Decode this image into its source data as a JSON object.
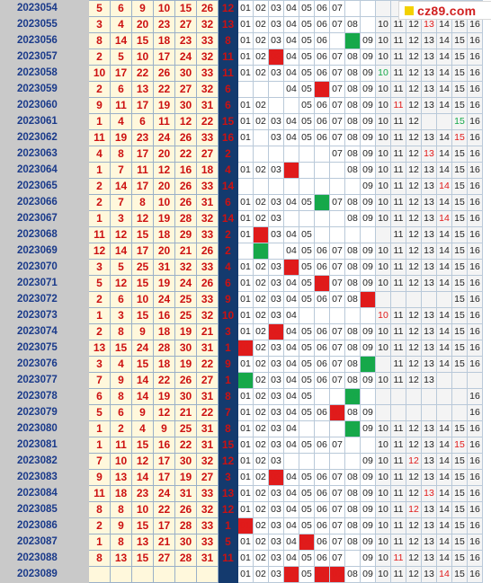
{
  "colors": {
    "period_bg": "#c9c9c9",
    "red_ball": "#cc1111",
    "blue_col_bg": "#143a6e",
    "hit_red": "#e01b1b",
    "hit_green": "#16a84a"
  },
  "logo": {
    "text": "cz89.com",
    "icon": "yellow-square-icon"
  },
  "nums": [
    "01",
    "02",
    "03",
    "04",
    "05",
    "06",
    "07",
    "08",
    "09",
    "10",
    "11",
    "12",
    "13",
    "14",
    "15",
    "16"
  ],
  "rows": [
    {
      "p": "2023054",
      "r": [
        "5",
        "6",
        "9",
        "10",
        "15",
        "26"
      ],
      "b": "12",
      "show": [
        1,
        1,
        1,
        1,
        1,
        1,
        1,
        0,
        0,
        0,
        0,
        0,
        0,
        0,
        0,
        0
      ],
      "hit": {}
    },
    {
      "p": "2023055",
      "r": [
        "3",
        "4",
        "20",
        "23",
        "27",
        "32"
      ],
      "b": "13",
      "show": [
        1,
        1,
        1,
        1,
        1,
        1,
        1,
        1,
        0,
        1,
        1,
        1,
        1,
        1,
        1,
        1
      ],
      "hit": {
        "13": "R"
      }
    },
    {
      "p": "2023056",
      "r": [
        "8",
        "14",
        "15",
        "18",
        "23",
        "33"
      ],
      "b": "8",
      "show": [
        1,
        1,
        1,
        1,
        1,
        1,
        0,
        1,
        1,
        1,
        1,
        1,
        1,
        1,
        1,
        1
      ],
      "hit": {
        "08": "G"
      }
    },
    {
      "p": "2023057",
      "r": [
        "2",
        "5",
        "10",
        "17",
        "24",
        "32"
      ],
      "b": "11",
      "show": [
        1,
        1,
        1,
        1,
        1,
        1,
        1,
        1,
        1,
        1,
        1,
        1,
        1,
        1,
        1,
        1
      ],
      "hit": {
        "03": "R"
      }
    },
    {
      "p": "2023058",
      "r": [
        "10",
        "17",
        "22",
        "26",
        "30",
        "33"
      ],
      "b": "11",
      "show": [
        1,
        1,
        1,
        1,
        1,
        1,
        1,
        1,
        1,
        1,
        1,
        1,
        1,
        1,
        1,
        1
      ],
      "hit": {
        "10": "G"
      }
    },
    {
      "p": "2023059",
      "r": [
        "2",
        "6",
        "13",
        "22",
        "27",
        "32"
      ],
      "b": "6",
      "show": [
        0,
        0,
        0,
        1,
        1,
        1,
        1,
        1,
        1,
        1,
        1,
        1,
        1,
        1,
        1,
        1
      ],
      "hit": {
        "06": "R"
      }
    },
    {
      "p": "2023060",
      "r": [
        "9",
        "11",
        "17",
        "19",
        "30",
        "31"
      ],
      "b": "6",
      "show": [
        1,
        1,
        0,
        0,
        1,
        1,
        1,
        1,
        1,
        1,
        1,
        1,
        1,
        1,
        1,
        1
      ],
      "hit": {
        "11": "R"
      }
    },
    {
      "p": "2023061",
      "r": [
        "1",
        "4",
        "6",
        "11",
        "12",
        "22"
      ],
      "b": "15",
      "show": [
        1,
        1,
        1,
        1,
        1,
        1,
        1,
        1,
        1,
        1,
        1,
        1,
        0,
        0,
        1,
        1
      ],
      "hit": {
        "15": "G"
      }
    },
    {
      "p": "2023062",
      "r": [
        "11",
        "19",
        "23",
        "24",
        "26",
        "33"
      ],
      "b": "16",
      "show": [
        1,
        0,
        1,
        1,
        1,
        1,
        1,
        1,
        1,
        1,
        1,
        1,
        1,
        1,
        1,
        1
      ],
      "hit": {
        "15": "R"
      }
    },
    {
      "p": "2023063",
      "r": [
        "4",
        "8",
        "17",
        "20",
        "22",
        "27"
      ],
      "b": "2",
      "show": [
        0,
        0,
        0,
        0,
        0,
        0,
        1,
        1,
        1,
        1,
        1,
        1,
        1,
        1,
        1,
        1
      ],
      "hit": {
        "13": "R"
      }
    },
    {
      "p": "2023064",
      "r": [
        "1",
        "7",
        "11",
        "12",
        "16",
        "18"
      ],
      "b": "4",
      "show": [
        1,
        1,
        1,
        1,
        0,
        0,
        0,
        1,
        1,
        1,
        1,
        1,
        1,
        1,
        1,
        1
      ],
      "hit": {
        "04": "R"
      }
    },
    {
      "p": "2023065",
      "r": [
        "2",
        "14",
        "17",
        "20",
        "26",
        "33"
      ],
      "b": "14",
      "show": [
        0,
        0,
        0,
        0,
        0,
        0,
        0,
        0,
        1,
        1,
        1,
        1,
        1,
        1,
        1,
        1
      ],
      "hit": {
        "14": "R"
      }
    },
    {
      "p": "2023066",
      "r": [
        "2",
        "7",
        "8",
        "10",
        "26",
        "31"
      ],
      "b": "6",
      "show": [
        1,
        1,
        1,
        1,
        1,
        1,
        1,
        1,
        1,
        1,
        1,
        1,
        1,
        1,
        1,
        1
      ],
      "hit": {
        "06": "G"
      }
    },
    {
      "p": "2023067",
      "r": [
        "1",
        "3",
        "12",
        "19",
        "28",
        "32"
      ],
      "b": "14",
      "show": [
        1,
        1,
        1,
        0,
        0,
        0,
        0,
        1,
        1,
        1,
        1,
        1,
        1,
        1,
        1,
        1
      ],
      "hit": {
        "14": "R"
      }
    },
    {
      "p": "2023068",
      "r": [
        "11",
        "12",
        "15",
        "18",
        "29",
        "33"
      ],
      "b": "2",
      "show": [
        1,
        1,
        1,
        1,
        1,
        0,
        0,
        0,
        0,
        0,
        1,
        1,
        1,
        1,
        1,
        1
      ],
      "hit": {
        "02": "R"
      }
    },
    {
      "p": "2023069",
      "r": [
        "12",
        "14",
        "17",
        "20",
        "21",
        "26"
      ],
      "b": "2",
      "show": [
        0,
        1,
        0,
        1,
        1,
        1,
        1,
        1,
        1,
        1,
        1,
        1,
        1,
        1,
        1,
        1
      ],
      "hit": {
        "02": "G"
      }
    },
    {
      "p": "2023070",
      "r": [
        "3",
        "5",
        "25",
        "31",
        "32",
        "33"
      ],
      "b": "4",
      "show": [
        1,
        1,
        1,
        1,
        1,
        1,
        1,
        1,
        1,
        1,
        1,
        1,
        1,
        1,
        1,
        1
      ],
      "hit": {
        "04": "R"
      }
    },
    {
      "p": "2023071",
      "r": [
        "5",
        "12",
        "15",
        "19",
        "24",
        "26"
      ],
      "b": "6",
      "show": [
        1,
        1,
        1,
        1,
        1,
        1,
        1,
        1,
        1,
        1,
        1,
        1,
        1,
        1,
        1,
        1
      ],
      "hit": {
        "06": "R"
      }
    },
    {
      "p": "2023072",
      "r": [
        "2",
        "6",
        "10",
        "24",
        "25",
        "33"
      ],
      "b": "9",
      "show": [
        1,
        1,
        1,
        1,
        1,
        1,
        1,
        1,
        1,
        0,
        0,
        0,
        0,
        0,
        1,
        1
      ],
      "hit": {
        "09": "R"
      }
    },
    {
      "p": "2023073",
      "r": [
        "1",
        "3",
        "15",
        "16",
        "25",
        "32"
      ],
      "b": "10",
      "show": [
        1,
        1,
        1,
        1,
        0,
        0,
        0,
        0,
        0,
        1,
        1,
        1,
        1,
        1,
        1,
        1
      ],
      "hit": {
        "10": "R"
      }
    },
    {
      "p": "2023074",
      "r": [
        "2",
        "8",
        "9",
        "18",
        "19",
        "21"
      ],
      "b": "3",
      "show": [
        1,
        1,
        1,
        1,
        1,
        1,
        1,
        1,
        1,
        1,
        1,
        1,
        1,
        1,
        1,
        1
      ],
      "hit": {
        "03": "R"
      }
    },
    {
      "p": "2023075",
      "r": [
        "13",
        "15",
        "24",
        "28",
        "30",
        "31"
      ],
      "b": "1",
      "show": [
        1,
        1,
        1,
        1,
        1,
        1,
        1,
        1,
        1,
        1,
        1,
        1,
        1,
        1,
        1,
        1
      ],
      "hit": {
        "01": "R"
      }
    },
    {
      "p": "2023076",
      "r": [
        "3",
        "4",
        "15",
        "18",
        "19",
        "22"
      ],
      "b": "9",
      "show": [
        1,
        1,
        1,
        1,
        1,
        1,
        1,
        1,
        1,
        0,
        1,
        1,
        1,
        1,
        1,
        1
      ],
      "hit": {
        "09": "G"
      }
    },
    {
      "p": "2023077",
      "r": [
        "7",
        "9",
        "14",
        "22",
        "26",
        "27"
      ],
      "b": "1",
      "show": [
        1,
        1,
        1,
        1,
        1,
        1,
        1,
        1,
        1,
        1,
        1,
        1,
        1,
        0,
        0,
        0
      ],
      "hit": {
        "01": "G"
      }
    },
    {
      "p": "2023078",
      "r": [
        "6",
        "8",
        "14",
        "19",
        "30",
        "31"
      ],
      "b": "8",
      "show": [
        1,
        1,
        1,
        1,
        1,
        0,
        0,
        0,
        0,
        0,
        0,
        0,
        0,
        0,
        0,
        1
      ],
      "hit": {
        "08": "G"
      }
    },
    {
      "p": "2023079",
      "r": [
        "5",
        "6",
        "9",
        "12",
        "21",
        "22"
      ],
      "b": "7",
      "show": [
        1,
        1,
        1,
        1,
        1,
        1,
        1,
        1,
        1,
        0,
        0,
        0,
        0,
        0,
        0,
        1
      ],
      "hit": {
        "07": "R"
      }
    },
    {
      "p": "2023080",
      "r": [
        "1",
        "2",
        "4",
        "9",
        "25",
        "31"
      ],
      "b": "8",
      "show": [
        1,
        1,
        1,
        1,
        0,
        0,
        0,
        1,
        1,
        1,
        1,
        1,
        1,
        1,
        1,
        1
      ],
      "hit": {
        "08": "G"
      }
    },
    {
      "p": "2023081",
      "r": [
        "1",
        "11",
        "15",
        "16",
        "22",
        "31"
      ],
      "b": "15",
      "show": [
        1,
        1,
        1,
        1,
        1,
        1,
        1,
        0,
        0,
        1,
        1,
        1,
        1,
        1,
        1,
        1
      ],
      "hit": {
        "15": "R"
      }
    },
    {
      "p": "2023082",
      "r": [
        "7",
        "10",
        "12",
        "17",
        "30",
        "32"
      ],
      "b": "12",
      "show": [
        1,
        1,
        1,
        0,
        0,
        0,
        0,
        0,
        1,
        1,
        1,
        1,
        1,
        1,
        1,
        1
      ],
      "hit": {
        "12": "R"
      }
    },
    {
      "p": "2023083",
      "r": [
        "9",
        "13",
        "14",
        "17",
        "19",
        "27"
      ],
      "b": "3",
      "show": [
        1,
        1,
        1,
        1,
        1,
        1,
        1,
        1,
        1,
        1,
        1,
        1,
        1,
        1,
        1,
        1
      ],
      "hit": {
        "03": "R"
      }
    },
    {
      "p": "2023084",
      "r": [
        "11",
        "18",
        "23",
        "24",
        "31",
        "33"
      ],
      "b": "13",
      "show": [
        1,
        1,
        1,
        1,
        1,
        1,
        1,
        1,
        1,
        1,
        1,
        1,
        1,
        1,
        1,
        1
      ],
      "hit": {
        "13": "R"
      }
    },
    {
      "p": "2023085",
      "r": [
        "8",
        "8",
        "10",
        "22",
        "26",
        "32"
      ],
      "b": "12",
      "show": [
        1,
        1,
        1,
        1,
        1,
        1,
        1,
        1,
        1,
        1,
        1,
        1,
        1,
        1,
        1,
        1
      ],
      "hit": {
        "12": "R"
      }
    },
    {
      "p": "2023086",
      "r": [
        "2",
        "9",
        "15",
        "17",
        "28",
        "33"
      ],
      "b": "1",
      "show": [
        1,
        1,
        1,
        1,
        1,
        1,
        1,
        1,
        1,
        1,
        1,
        1,
        1,
        1,
        1,
        1
      ],
      "hit": {
        "01": "R"
      }
    },
    {
      "p": "2023087",
      "r": [
        "1",
        "8",
        "13",
        "21",
        "30",
        "33"
      ],
      "b": "5",
      "show": [
        1,
        1,
        1,
        1,
        1,
        1,
        1,
        1,
        1,
        1,
        1,
        1,
        1,
        1,
        1,
        1
      ],
      "hit": {
        "05": "R"
      }
    },
    {
      "p": "2023088",
      "r": [
        "8",
        "13",
        "15",
        "27",
        "28",
        "31"
      ],
      "b": "11",
      "show": [
        1,
        1,
        1,
        1,
        1,
        1,
        1,
        0,
        1,
        1,
        1,
        1,
        1,
        1,
        1,
        1
      ],
      "hit": {
        "11": "R"
      }
    },
    {
      "p": "2023089",
      "r": [
        "",
        "",
        "",
        "",
        "",
        ""
      ],
      "b": "",
      "show": [
        1,
        1,
        1,
        1,
        1,
        1,
        1,
        1,
        1,
        1,
        1,
        1,
        1,
        1,
        1,
        1
      ],
      "hit": {
        "04": "R",
        "06": "R",
        "07": "R",
        "14": "R"
      }
    }
  ]
}
